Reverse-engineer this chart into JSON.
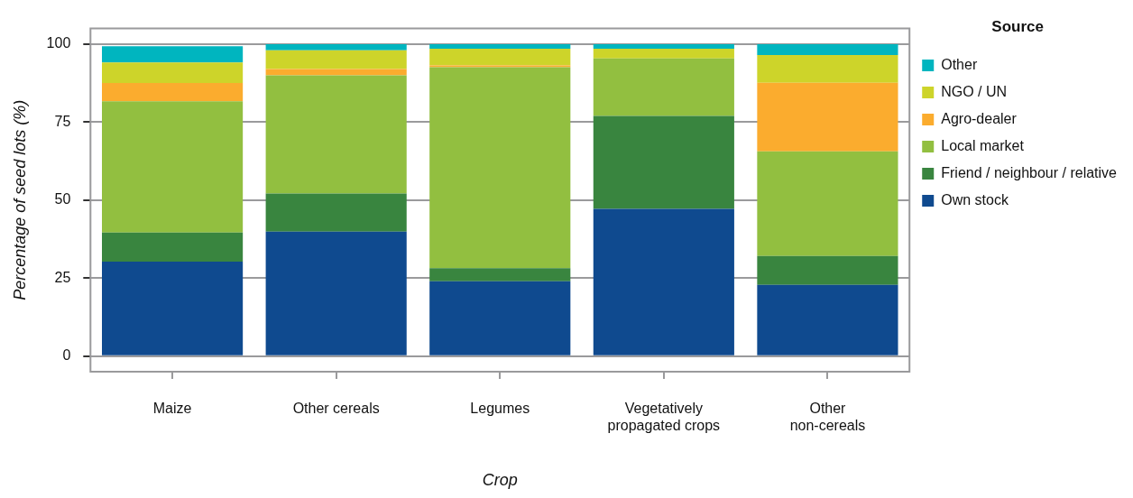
{
  "chart_data": {
    "type": "bar",
    "stacked": true,
    "xlabel": "Crop",
    "ylabel": "Percentage of seed lots (%)",
    "legend_title": "Source",
    "categories": [
      "Maize",
      "Other cereals",
      "Legumes",
      "Vegetatively propagated crops",
      "Other non-cereals"
    ],
    "series": [
      {
        "name": "Own stock",
        "color": "#0f4a8f",
        "values": [
          30.3,
          39.9,
          24.0,
          47.2,
          22.8
        ]
      },
      {
        "name": "Friend / neighbour / relative",
        "color": "#39853f",
        "values": [
          9.3,
          12.2,
          4.2,
          29.8,
          9.3
        ]
      },
      {
        "name": "Local market",
        "color": "#92bf40",
        "values": [
          42.1,
          37.9,
          64.4,
          18.4,
          33.5
        ]
      },
      {
        "name": "Agro-dealer",
        "color": "#fbac2e",
        "values": [
          5.8,
          2.0,
          0.6,
          0,
          22.0
        ]
      },
      {
        "name": "NGO / UN",
        "color": "#cdd42a",
        "values": [
          6.6,
          6.0,
          5.3,
          3.1,
          8.9
        ]
      },
      {
        "name": "Other",
        "color": "#00b5bf",
        "values": [
          5.2,
          2.0,
          1.5,
          1.5,
          3.5
        ]
      }
    ],
    "ylim": [
      -5,
      105
    ],
    "yticks": [
      0,
      25,
      50,
      75,
      100
    ],
    "grid": "y",
    "legend": "right"
  }
}
